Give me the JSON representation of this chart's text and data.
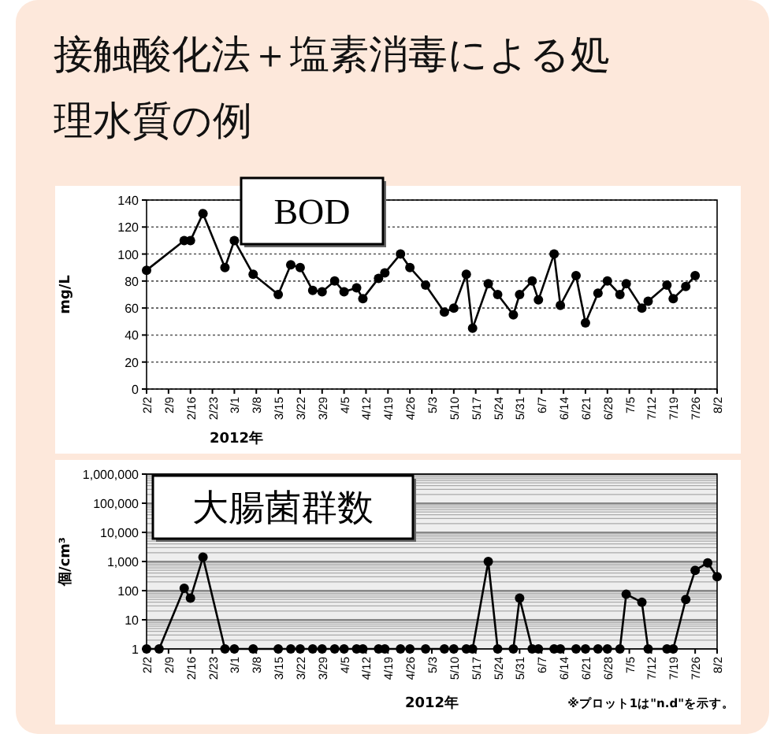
{
  "chart_data": [
    {
      "type": "other",
      "title": "接触酸化法＋塩素消毒による処理水質の例"
    },
    {
      "type": "line",
      "title": "BOD",
      "xlabel": "2012年",
      "ylabel": "mg/L",
      "marker": "circle",
      "line_style": "solid",
      "grid": "y",
      "xlim": [
        "2012-02-02",
        "2012-08-02"
      ],
      "ylim": [
        0,
        140
      ],
      "yticks": [
        0,
        20,
        40,
        60,
        80,
        100,
        120,
        140
      ],
      "xticks": [
        {
          "value": "2012-02-02",
          "label": "2/2"
        },
        {
          "value": "2012-02-09",
          "label": "2/9"
        },
        {
          "value": "2012-02-16",
          "label": "2/16"
        },
        {
          "value": "2012-02-23",
          "label": "2/23"
        },
        {
          "value": "2012-03-01",
          "label": "3/1"
        },
        {
          "value": "2012-03-08",
          "label": "3/8"
        },
        {
          "value": "2012-03-15",
          "label": "3/15"
        },
        {
          "value": "2012-03-22",
          "label": "3/22"
        },
        {
          "value": "2012-03-29",
          "label": "3/29"
        },
        {
          "value": "2012-04-05",
          "label": "4/5"
        },
        {
          "value": "2012-04-12",
          "label": "4/12"
        },
        {
          "value": "2012-04-19",
          "label": "4/19"
        },
        {
          "value": "2012-04-26",
          "label": "4/26"
        },
        {
          "value": "2012-05-03",
          "label": "5/3"
        },
        {
          "value": "2012-05-10",
          "label": "5/10"
        },
        {
          "value": "2012-05-17",
          "label": "5/17"
        },
        {
          "value": "2012-05-24",
          "label": "5/24"
        },
        {
          "value": "2012-05-31",
          "label": "5/31"
        },
        {
          "value": "2012-06-07",
          "label": "6/7"
        },
        {
          "value": "2012-06-14",
          "label": "6/14"
        },
        {
          "value": "2012-06-21",
          "label": "6/21"
        },
        {
          "value": "2012-06-28",
          "label": "6/28"
        },
        {
          "value": "2012-07-05",
          "label": "7/5"
        },
        {
          "value": "2012-07-12",
          "label": "7/12"
        },
        {
          "value": "2012-07-19",
          "label": "7/19"
        },
        {
          "value": "2012-07-26",
          "label": "7/26"
        },
        {
          "value": "2012-08-02",
          "label": "8/2"
        }
      ],
      "x": [
        "2012-02-02",
        "2012-02-14",
        "2012-02-16",
        "2012-02-20",
        "2012-02-27",
        "2012-03-01",
        "2012-03-07",
        "2012-03-15",
        "2012-03-19",
        "2012-03-22",
        "2012-03-26",
        "2012-03-29",
        "2012-04-02",
        "2012-04-05",
        "2012-04-09",
        "2012-04-11",
        "2012-04-16",
        "2012-04-18",
        "2012-04-23",
        "2012-04-26",
        "2012-05-01",
        "2012-05-07",
        "2012-05-10",
        "2012-05-14",
        "2012-05-16",
        "2012-05-21",
        "2012-05-24",
        "2012-05-29",
        "2012-05-31",
        "2012-06-04",
        "2012-06-06",
        "2012-06-11",
        "2012-06-13",
        "2012-06-18",
        "2012-06-21",
        "2012-06-25",
        "2012-06-28",
        "2012-07-02",
        "2012-07-04",
        "2012-07-09",
        "2012-07-11",
        "2012-07-17",
        "2012-07-19",
        "2012-07-23",
        "2012-07-26"
      ],
      "series": [
        {
          "color": "#000000",
          "values": [
            88,
            110,
            110,
            130,
            90,
            110,
            85,
            70,
            92,
            90,
            73,
            72,
            80,
            72,
            75,
            67,
            82,
            86,
            100,
            90,
            77,
            57,
            60,
            85,
            45,
            78,
            70,
            55,
            70,
            80,
            66,
            100,
            62,
            84,
            49,
            71,
            80,
            70,
            78,
            60,
            65,
            77,
            67,
            76,
            84
          ]
        }
      ]
    },
    {
      "type": "line",
      "title": "大腸菌群数",
      "xlabel": "2012年",
      "ylabel": "個/cm³",
      "marker": "circle",
      "line_style": "solid",
      "grid": "y",
      "log": "y",
      "annotations": [
        "※プロット1は\"n.d\"を示す。"
      ],
      "xlim": [
        "2012-02-02",
        "2012-08-02"
      ],
      "ylim": [
        1,
        1000000
      ],
      "yticks": [
        1,
        10,
        100,
        {
          "value": 1000,
          "label": "1,000"
        },
        {
          "value": 10000,
          "label": "10,000"
        },
        {
          "value": 100000,
          "label": "100,000"
        },
        {
          "value": 1000000,
          "label": "1,000,000"
        }
      ],
      "xticks": [
        {
          "value": "2012-02-02",
          "label": "2/2"
        },
        {
          "value": "2012-02-09",
          "label": "2/9"
        },
        {
          "value": "2012-02-16",
          "label": "2/16"
        },
        {
          "value": "2012-02-23",
          "label": "2/23"
        },
        {
          "value": "2012-03-01",
          "label": "3/1"
        },
        {
          "value": "2012-03-08",
          "label": "3/8"
        },
        {
          "value": "2012-03-15",
          "label": "3/15"
        },
        {
          "value": "2012-03-22",
          "label": "3/22"
        },
        {
          "value": "2012-03-29",
          "label": "3/29"
        },
        {
          "value": "2012-04-05",
          "label": "4/5"
        },
        {
          "value": "2012-04-12",
          "label": "4/12"
        },
        {
          "value": "2012-04-19",
          "label": "4/19"
        },
        {
          "value": "2012-04-26",
          "label": "4/26"
        },
        {
          "value": "2012-05-03",
          "label": "5/3"
        },
        {
          "value": "2012-05-10",
          "label": "5/10"
        },
        {
          "value": "2012-05-17",
          "label": "5/17"
        },
        {
          "value": "2012-05-24",
          "label": "5/24"
        },
        {
          "value": "2012-05-31",
          "label": "5/31"
        },
        {
          "value": "2012-06-07",
          "label": "6/7"
        },
        {
          "value": "2012-06-14",
          "label": "6/14"
        },
        {
          "value": "2012-06-21",
          "label": "6/21"
        },
        {
          "value": "2012-06-28",
          "label": "6/28"
        },
        {
          "value": "2012-07-05",
          "label": "7/5"
        },
        {
          "value": "2012-07-12",
          "label": "7/12"
        },
        {
          "value": "2012-07-19",
          "label": "7/19"
        },
        {
          "value": "2012-07-26",
          "label": "7/26"
        },
        {
          "value": "2012-08-02",
          "label": "8/2"
        }
      ],
      "x": [
        "2012-02-02",
        "2012-02-06",
        "2012-02-14",
        "2012-02-16",
        "2012-02-20",
        "2012-02-27",
        "2012-03-01",
        "2012-03-07",
        "2012-03-15",
        "2012-03-19",
        "2012-03-22",
        "2012-03-26",
        "2012-03-29",
        "2012-04-02",
        "2012-04-05",
        "2012-04-09",
        "2012-04-11",
        "2012-04-16",
        "2012-04-18",
        "2012-04-23",
        "2012-04-26",
        "2012-05-01",
        "2012-05-07",
        "2012-05-10",
        "2012-05-14",
        "2012-05-16",
        "2012-05-21",
        "2012-05-24",
        "2012-05-29",
        "2012-05-31",
        "2012-06-04",
        "2012-06-06",
        "2012-06-11",
        "2012-06-13",
        "2012-06-18",
        "2012-06-21",
        "2012-06-25",
        "2012-06-28",
        "2012-07-02",
        "2012-07-04",
        "2012-07-09",
        "2012-07-11",
        "2012-07-17",
        "2012-07-19",
        "2012-07-23",
        "2012-07-26",
        "2012-07-30",
        "2012-08-02"
      ],
      "series": [
        {
          "color": "#000000",
          "values": [
            1,
            1,
            120,
            55,
            1400,
            1,
            1,
            1,
            1,
            1,
            1,
            1,
            1,
            1,
            1,
            1,
            1,
            1,
            1,
            1,
            1,
            1,
            1,
            1,
            1,
            1,
            1000,
            1,
            1,
            55,
            1,
            1,
            1,
            1,
            1,
            1,
            1,
            1,
            1,
            75,
            40,
            1,
            1,
            1,
            50,
            500,
            900,
            300
          ]
        }
      ]
    }
  ]
}
